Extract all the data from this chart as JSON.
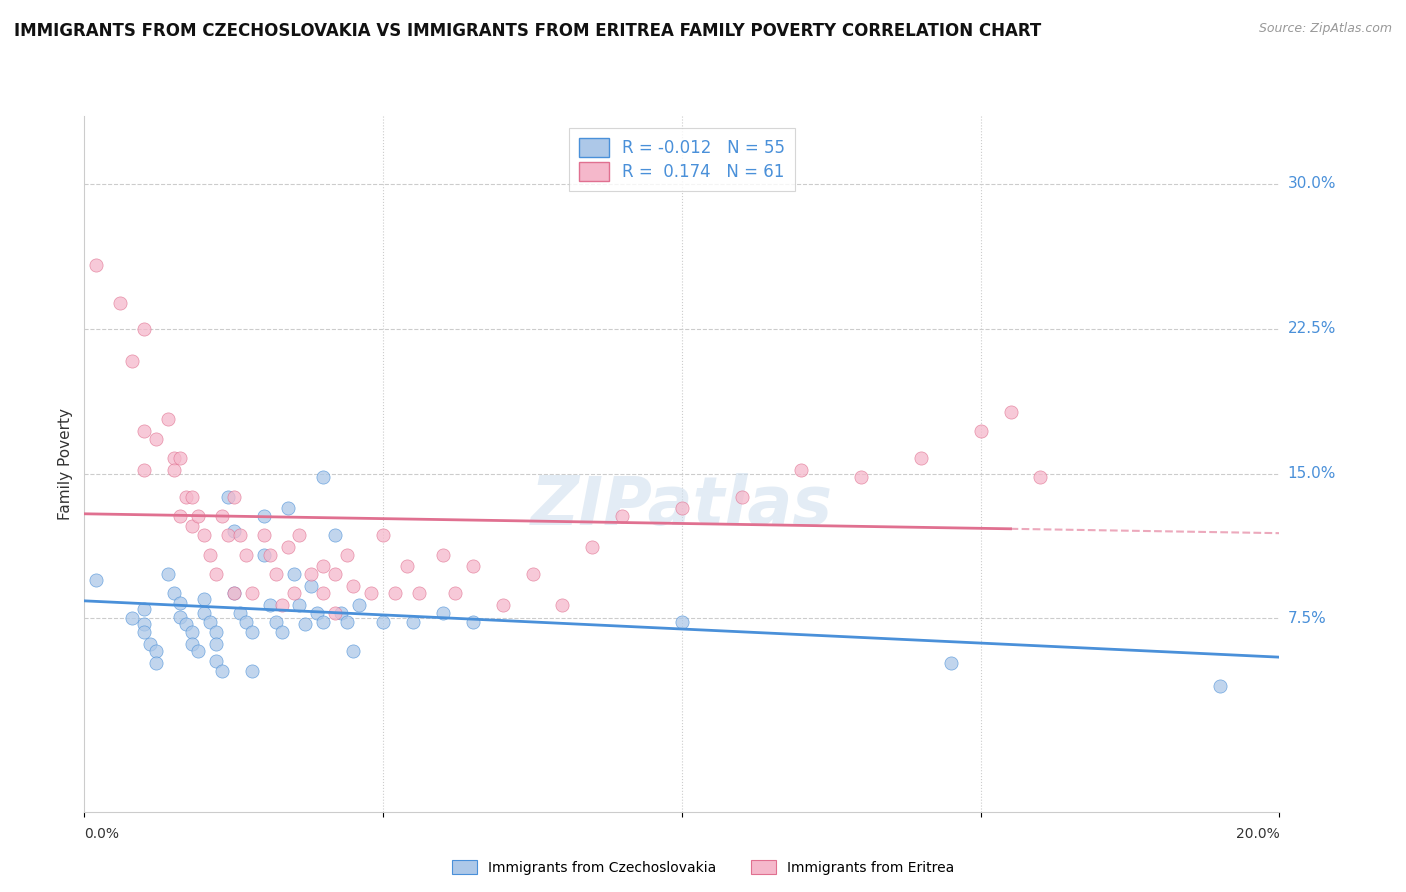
{
  "title": "IMMIGRANTS FROM CZECHOSLOVAKIA VS IMMIGRANTS FROM ERITREA FAMILY POVERTY CORRELATION CHART",
  "source": "Source: ZipAtlas.com",
  "ylabel": "Family Poverty",
  "ytick_labels": [
    "7.5%",
    "15.0%",
    "22.5%",
    "30.0%"
  ],
  "ytick_values": [
    0.075,
    0.15,
    0.225,
    0.3
  ],
  "xlim": [
    0.0,
    0.2
  ],
  "ylim": [
    -0.025,
    0.335
  ],
  "legend_label1": "Immigrants from Czechoslovakia",
  "legend_label2": "Immigrants from Eritrea",
  "r1": -0.012,
  "n1": 55,
  "r2": 0.174,
  "n2": 61,
  "color1": "#adc8e8",
  "color2": "#f5b8cb",
  "line_color1": "#4a90d9",
  "line_color2": "#e07090",
  "watermark": "ZIPatlas",
  "scatter1_x": [
    0.002,
    0.008,
    0.01,
    0.01,
    0.01,
    0.011,
    0.012,
    0.012,
    0.014,
    0.015,
    0.016,
    0.016,
    0.017,
    0.018,
    0.018,
    0.019,
    0.02,
    0.02,
    0.021,
    0.022,
    0.022,
    0.022,
    0.023,
    0.024,
    0.025,
    0.025,
    0.026,
    0.027,
    0.028,
    0.028,
    0.03,
    0.03,
    0.031,
    0.032,
    0.033,
    0.034,
    0.035,
    0.036,
    0.037,
    0.038,
    0.039,
    0.04,
    0.04,
    0.042,
    0.043,
    0.044,
    0.045,
    0.046,
    0.05,
    0.055,
    0.06,
    0.065,
    0.1,
    0.145,
    0.19
  ],
  "scatter1_y": [
    0.095,
    0.075,
    0.08,
    0.072,
    0.068,
    0.062,
    0.058,
    0.052,
    0.098,
    0.088,
    0.083,
    0.076,
    0.072,
    0.068,
    0.062,
    0.058,
    0.085,
    0.078,
    0.073,
    0.068,
    0.062,
    0.053,
    0.048,
    0.138,
    0.12,
    0.088,
    0.078,
    0.073,
    0.068,
    0.048,
    0.128,
    0.108,
    0.082,
    0.073,
    0.068,
    0.132,
    0.098,
    0.082,
    0.072,
    0.092,
    0.078,
    0.073,
    0.148,
    0.118,
    0.078,
    0.073,
    0.058,
    0.082,
    0.073,
    0.073,
    0.078,
    0.073,
    0.073,
    0.052,
    0.04
  ],
  "scatter2_x": [
    0.002,
    0.006,
    0.008,
    0.01,
    0.01,
    0.01,
    0.012,
    0.014,
    0.015,
    0.015,
    0.016,
    0.016,
    0.017,
    0.018,
    0.018,
    0.019,
    0.02,
    0.021,
    0.022,
    0.023,
    0.024,
    0.025,
    0.025,
    0.026,
    0.027,
    0.028,
    0.03,
    0.031,
    0.032,
    0.033,
    0.034,
    0.035,
    0.036,
    0.038,
    0.04,
    0.04,
    0.042,
    0.042,
    0.044,
    0.045,
    0.048,
    0.05,
    0.052,
    0.054,
    0.056,
    0.06,
    0.062,
    0.065,
    0.07,
    0.075,
    0.08,
    0.085,
    0.09,
    0.1,
    0.11,
    0.12,
    0.13,
    0.14,
    0.15,
    0.155,
    0.16
  ],
  "scatter2_y": [
    0.258,
    0.238,
    0.208,
    0.225,
    0.172,
    0.152,
    0.168,
    0.178,
    0.158,
    0.152,
    0.128,
    0.158,
    0.138,
    0.123,
    0.138,
    0.128,
    0.118,
    0.108,
    0.098,
    0.128,
    0.118,
    0.088,
    0.138,
    0.118,
    0.108,
    0.088,
    0.118,
    0.108,
    0.098,
    0.082,
    0.112,
    0.088,
    0.118,
    0.098,
    0.102,
    0.088,
    0.098,
    0.078,
    0.108,
    0.092,
    0.088,
    0.118,
    0.088,
    0.102,
    0.088,
    0.108,
    0.088,
    0.102,
    0.082,
    0.098,
    0.082,
    0.112,
    0.128,
    0.132,
    0.138,
    0.152,
    0.148,
    0.158,
    0.172,
    0.182,
    0.148
  ],
  "trend2_x_solid_end": 0.155,
  "trend2_x_dashed_start": 0.155,
  "trend2_x_dashed_end": 0.2
}
